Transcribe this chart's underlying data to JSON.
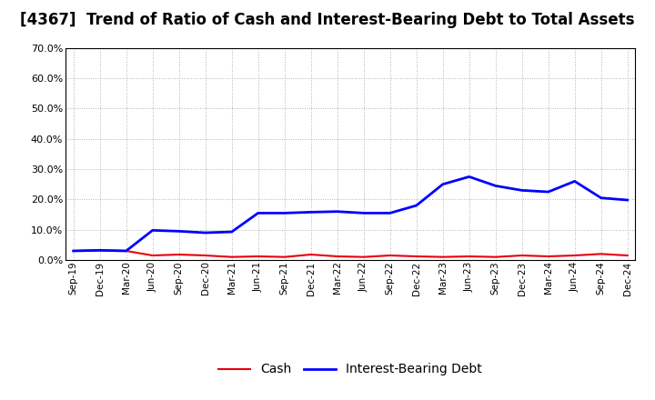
{
  "title": "[4367]  Trend of Ratio of Cash and Interest-Bearing Debt to Total Assets",
  "x_labels": [
    "Sep-19",
    "Dec-19",
    "Mar-20",
    "Jun-20",
    "Sep-20",
    "Dec-20",
    "Mar-21",
    "Jun-21",
    "Sep-21",
    "Dec-21",
    "Mar-22",
    "Jun-22",
    "Sep-22",
    "Dec-22",
    "Mar-23",
    "Jun-23",
    "Sep-23",
    "Dec-23",
    "Mar-24",
    "Jun-24",
    "Sep-24",
    "Dec-24"
  ],
  "cash": [
    3.0,
    3.2,
    3.0,
    1.5,
    1.8,
    1.5,
    1.0,
    1.2,
    1.0,
    1.8,
    1.2,
    1.0,
    1.5,
    1.2,
    1.0,
    1.2,
    1.0,
    1.5,
    1.2,
    1.5,
    2.0,
    1.5
  ],
  "ibd": [
    3.0,
    3.2,
    3.0,
    9.8,
    9.5,
    9.0,
    9.3,
    15.5,
    15.5,
    15.8,
    16.0,
    15.5,
    15.5,
    18.0,
    25.0,
    27.5,
    24.5,
    23.0,
    22.5,
    26.0,
    20.5,
    19.8
  ],
  "cash_color": "#e8000d",
  "ibd_color": "#0000ff",
  "ylim": [
    0,
    70
  ],
  "yticks": [
    0,
    10,
    20,
    30,
    40,
    50,
    60,
    70
  ],
  "title_fontsize": 12,
  "background_color": "#ffffff",
  "grid_color": "#999999",
  "legend_labels": [
    "Cash",
    "Interest-Bearing Debt"
  ]
}
